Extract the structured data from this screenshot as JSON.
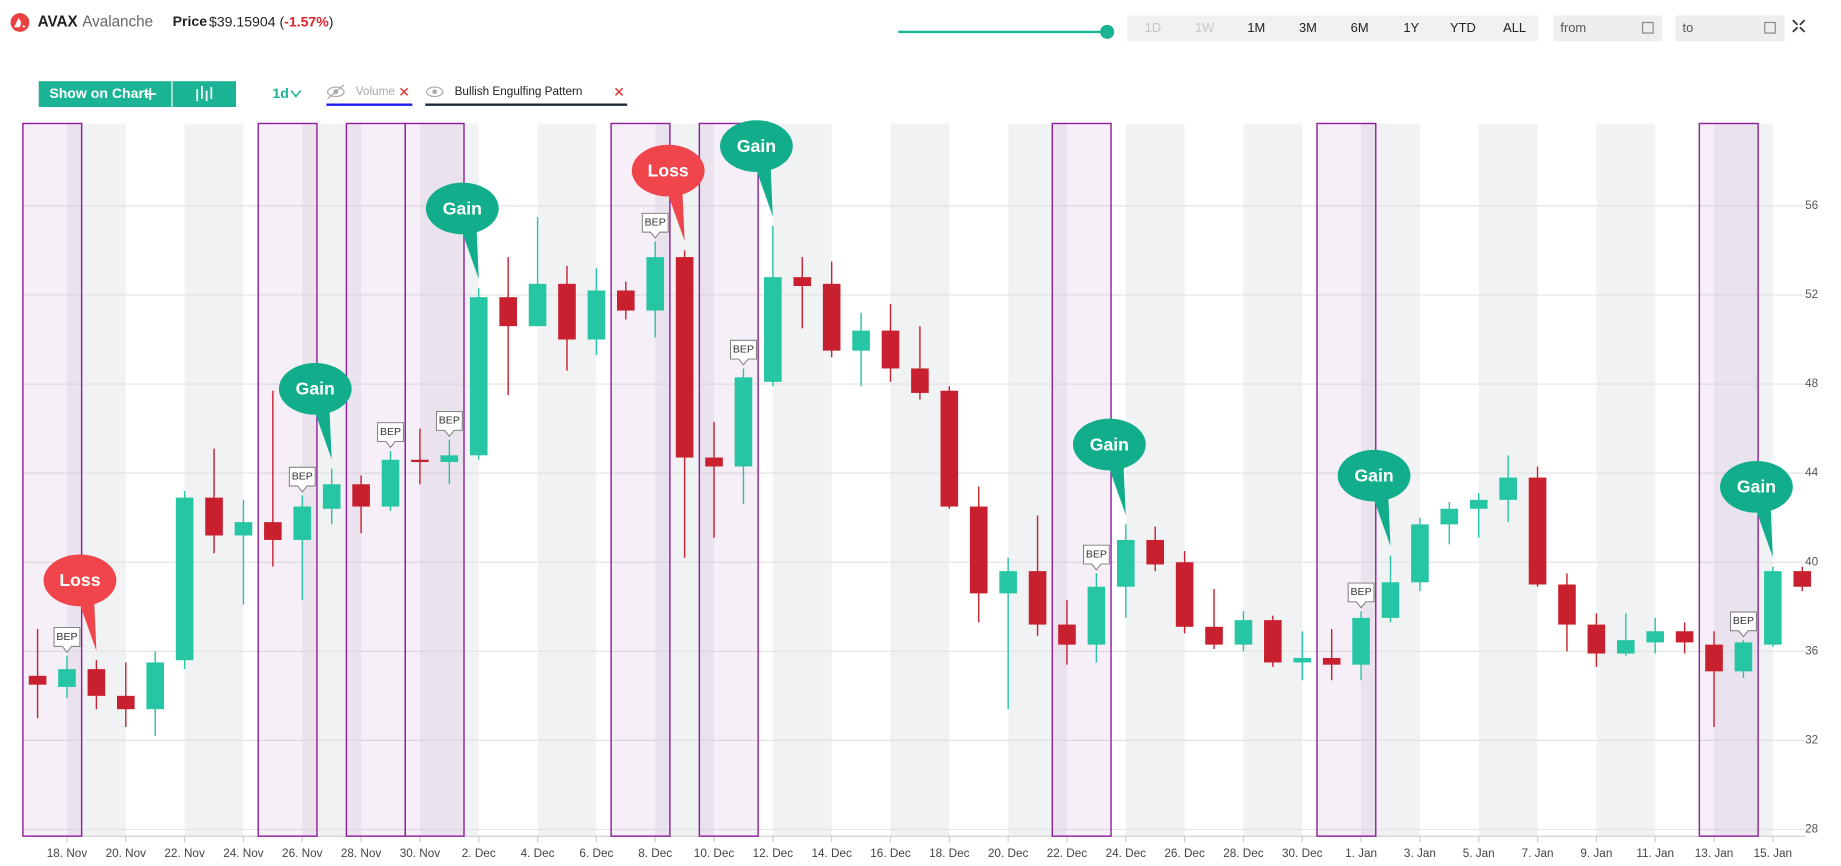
{
  "header": {
    "symbol": "AVAX",
    "name": "Avalanche",
    "price_label": "Price",
    "price": "$39.15904",
    "change_text": [
      "(",
      "-1.57%",
      ")"
    ],
    "ranges": [
      {
        "label": "1D",
        "enabled": false
      },
      {
        "label": "1W",
        "enabled": false
      },
      {
        "label": "1M",
        "enabled": true
      },
      {
        "label": "3M",
        "enabled": true
      },
      {
        "label": "6M",
        "enabled": true
      },
      {
        "label": "1Y",
        "enabled": true
      },
      {
        "label": "YTD",
        "enabled": true
      },
      {
        "label": "ALL",
        "enabled": true
      }
    ],
    "from_placeholder": "from",
    "to_placeholder": "to"
  },
  "toolbar": {
    "show_button": "Show on Chart",
    "interval": "1d",
    "indicators": [
      {
        "name": "Volume",
        "color": "#1d1df0",
        "muted": true
      },
      {
        "name": "Bullish Engulfing Pattern",
        "color": "#1e2a3a",
        "muted": false
      }
    ]
  },
  "chart_data": {
    "type": "candlestick",
    "categories": [
      null,
      "18. Nov",
      null,
      "20. Nov",
      null,
      "22. Nov",
      null,
      "24. Nov",
      null,
      "26. Nov",
      null,
      "28. Nov",
      null,
      "30. Nov",
      null,
      "2. Dec",
      null,
      "4. Dec",
      null,
      "6. Dec",
      null,
      "8. Dec",
      null,
      "10. Dec",
      null,
      "12. Dec",
      null,
      "14. Dec",
      null,
      "16. Dec",
      null,
      "18. Dec",
      null,
      "20. Dec",
      null,
      "22. Dec",
      null,
      "24. Dec",
      null,
      "26. Dec",
      null,
      "28. Dec",
      null,
      "30. Dec",
      null,
      "1. Jan",
      null,
      "3. Jan",
      null,
      "5. Jan",
      null,
      "7. Jan",
      null,
      "9. Jan",
      null,
      "11. Jan",
      null,
      "13. Jan",
      null,
      "15. Jan",
      null
    ],
    "open": [
      34.9,
      34.4,
      35.2,
      34.0,
      33.4,
      35.6,
      42.9,
      41.2,
      41.8,
      41.0,
      42.4,
      43.5,
      42.5,
      44.6,
      44.5,
      44.8,
      51.9,
      50.6,
      52.5,
      50.0,
      52.2,
      51.3,
      53.7,
      44.7,
      44.3,
      48.1,
      52.8,
      52.5,
      49.5,
      50.4,
      48.7,
      47.7,
      42.5,
      38.6,
      39.6,
      37.2,
      36.3,
      38.9,
      41.0,
      40.0,
      37.1,
      36.3,
      37.4,
      35.5,
      35.7,
      35.4,
      37.5,
      39.1,
      41.7,
      42.4,
      42.8,
      43.8,
      39.0,
      37.2,
      35.9,
      36.4,
      36.9,
      36.3,
      35.1,
      36.3,
      39.6
    ],
    "high": [
      37.0,
      35.8,
      35.6,
      35.5,
      36.0,
      43.2,
      45.1,
      42.8,
      47.7,
      43.0,
      44.2,
      43.9,
      45.0,
      46.0,
      45.5,
      52.3,
      53.7,
      55.5,
      53.3,
      53.2,
      52.6,
      54.4,
      54.0,
      46.3,
      48.7,
      55.1,
      53.7,
      53.5,
      51.2,
      51.6,
      50.6,
      47.9,
      43.4,
      40.2,
      42.1,
      38.3,
      39.5,
      41.7,
      41.6,
      40.5,
      38.8,
      37.8,
      37.6,
      36.9,
      37.0,
      37.8,
      40.3,
      42.0,
      42.7,
      43.1,
      44.8,
      44.3,
      39.5,
      37.7,
      37.7,
      37.5,
      37.3,
      36.9,
      36.5,
      39.8,
      39.8
    ],
    "low": [
      33.0,
      33.9,
      33.4,
      32.6,
      32.2,
      35.2,
      40.4,
      38.1,
      39.8,
      38.3,
      41.7,
      41.3,
      42.3,
      43.5,
      43.5,
      44.6,
      47.5,
      50.6,
      48.6,
      49.3,
      50.9,
      50.1,
      40.2,
      41.1,
      42.6,
      47.9,
      50.5,
      49.2,
      47.9,
      48.1,
      47.3,
      42.4,
      37.3,
      33.4,
      36.7,
      35.4,
      35.5,
      37.5,
      39.6,
      36.8,
      36.1,
      36.0,
      35.3,
      34.7,
      34.7,
      34.7,
      37.3,
      38.7,
      40.8,
      41.1,
      41.8,
      38.9,
      36.0,
      35.3,
      35.8,
      35.9,
      35.9,
      32.6,
      34.8,
      36.2,
      38.7
    ],
    "close": [
      34.5,
      35.2,
      34.0,
      33.4,
      35.5,
      42.9,
      41.2,
      41.8,
      41.0,
      42.5,
      43.5,
      42.5,
      44.6,
      44.5,
      44.8,
      51.9,
      50.6,
      52.5,
      50.0,
      52.2,
      51.3,
      53.7,
      44.7,
      44.3,
      48.3,
      52.8,
      52.4,
      49.5,
      50.4,
      48.7,
      47.6,
      42.5,
      38.6,
      39.6,
      37.2,
      36.3,
      38.9,
      41.0,
      39.9,
      37.1,
      36.3,
      37.4,
      35.5,
      35.7,
      35.4,
      37.5,
      39.1,
      41.7,
      42.4,
      42.8,
      43.8,
      39.0,
      37.2,
      35.9,
      36.5,
      36.9,
      36.4,
      35.1,
      36.4,
      39.6,
      38.9
    ],
    "up_color": "#26c6a4",
    "down_color": "#c8202f",
    "ylim": [
      27.7,
      59.7
    ],
    "yticks": [
      28,
      32,
      36,
      40,
      44,
      48,
      52,
      56
    ],
    "grid": true,
    "pattern_color": "#8e1f9c",
    "pattern_candles": [
      [
        0,
        1
      ],
      [
        8,
        9
      ],
      [
        11,
        12
      ],
      [
        13,
        14
      ],
      [
        20,
        21
      ],
      [
        23,
        24
      ],
      [
        35,
        36
      ],
      [
        44,
        45
      ],
      [
        57,
        58
      ]
    ],
    "bep_label": "BEP",
    "signals": [
      {
        "label": "Loss",
        "candle": 2,
        "color": "#f0454a"
      },
      {
        "label": "Gain",
        "candle": 10,
        "color": "#12ae8c"
      },
      {
        "label": "Gain",
        "candle": 15,
        "color": "#12ae8c"
      },
      {
        "label": "Loss",
        "candle": 22,
        "color": "#f0454a"
      },
      {
        "label": "Gain",
        "candle": 25,
        "color": "#12ae8c"
      },
      {
        "label": "Gain",
        "candle": 37,
        "color": "#12ae8c"
      },
      {
        "label": "Gain",
        "candle": 46,
        "color": "#12ae8c"
      },
      {
        "label": "Gain",
        "candle": 59,
        "color": "#12ae8c"
      }
    ]
  }
}
